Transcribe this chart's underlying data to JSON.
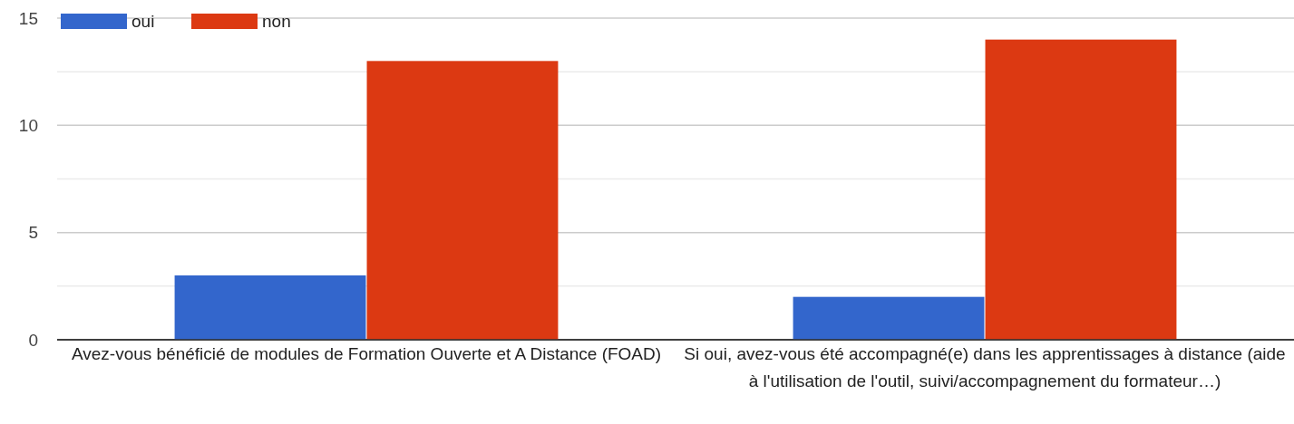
{
  "chart_data": {
    "type": "bar",
    "categories": [
      "Avez-vous bénéficié de modules de Formation Ouverte et A Distance (FOAD)",
      "Si oui, avez-vous été accompagné(e) dans les apprentissages à distance (aide à l'utilisation de l'outil, suivi/accompagnement du formateur…)"
    ],
    "series": [
      {
        "name": "oui",
        "color": "#3366cc",
        "values": [
          3,
          2
        ]
      },
      {
        "name": "non",
        "color": "#dc3912",
        "values": [
          13,
          14
        ]
      }
    ],
    "ylim": [
      0,
      15
    ],
    "yticks": [
      0,
      {
        "value": 2.5,
        "label": null
      },
      5,
      {
        "value": 7.5,
        "label": null
      },
      10,
      {
        "value": 12.5,
        "label": null
      },
      15
    ],
    "grid": "y",
    "legend": "top left"
  }
}
